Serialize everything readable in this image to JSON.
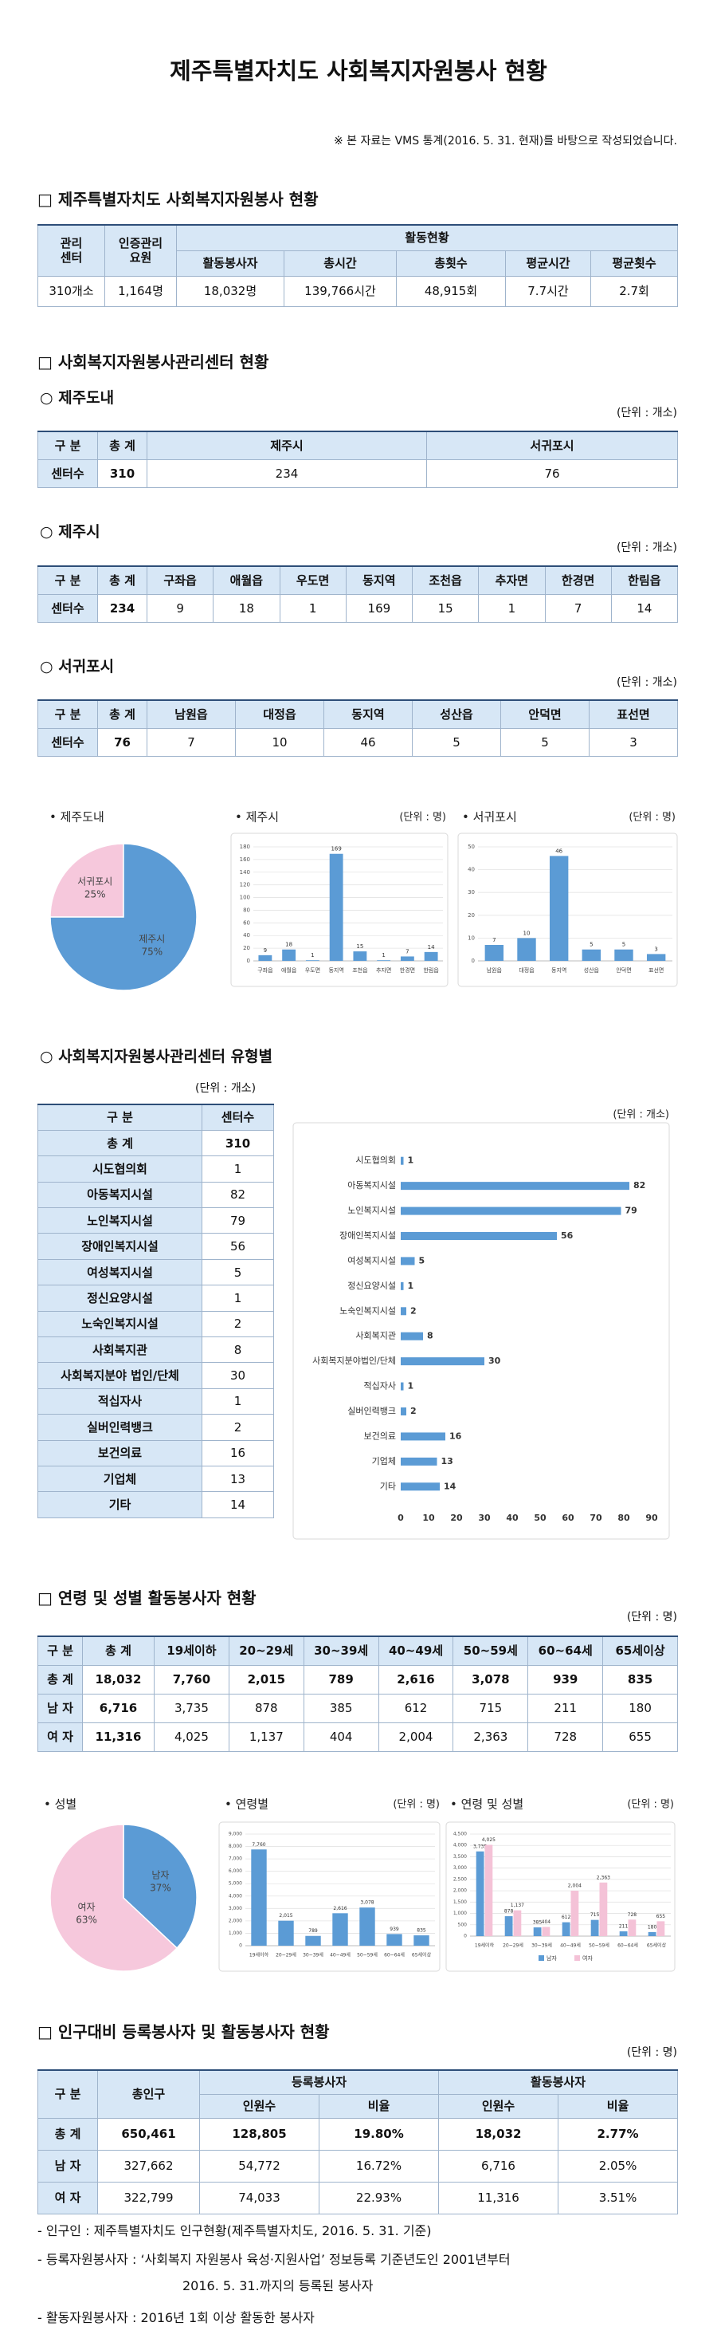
{
  "title": "제주특별자치도 사회복지자원봉사 현황",
  "note": "※ 본 자료는 VMS 통계(2016. 5. 31. 현재)를 바탕으로 작성되었습니다.",
  "section1": {
    "heading": "□ 제주특별자치도 사회복지자원봉사 현황",
    "table": {
      "head": [
        [
          "관리\n센터",
          "인증관리\n요원",
          "활동현황"
        ],
        [
          "활동봉사자",
          "총시간",
          "총횟수",
          "평균시간",
          "평균횟수"
        ]
      ],
      "rows": [
        [
          "310개소",
          "1,164명",
          "18,032명",
          "139,766시간",
          "48,915회",
          "7.7시간",
          "2.7회"
        ]
      ]
    }
  },
  "section2": {
    "heading": "□ 사회복지자원봉사관리센터 현황",
    "jeju_do": {
      "heading": "○ 제주도내",
      "unit": "(단위 : 개소)",
      "head": [
        "구 분",
        "총 계",
        "제주시",
        "서귀포시"
      ],
      "rows": [
        [
          "센터수",
          "310",
          "234",
          "76"
        ]
      ]
    },
    "jeju_si": {
      "heading": "○ 제주시",
      "unit": "(단위 : 개소)",
      "head": [
        "구 분",
        "총 계",
        "구좌읍",
        "애월읍",
        "우도면",
        "동지역",
        "조천읍",
        "추자면",
        "한경면",
        "한림읍"
      ],
      "rows": [
        [
          "센터수",
          "234",
          "9",
          "18",
          "1",
          "169",
          "15",
          "1",
          "7",
          "14"
        ]
      ]
    },
    "seogwipo": {
      "heading": "○ 서귀포시",
      "unit": "(단위 : 개소)",
      "head": [
        "구 분",
        "총 계",
        "남원읍",
        "대정읍",
        "동지역",
        "성산읍",
        "안덕면",
        "표선면"
      ],
      "rows": [
        [
          "센터수",
          "76",
          "7",
          "10",
          "46",
          "5",
          "5",
          "3"
        ]
      ]
    }
  },
  "charts1": [
    {
      "type": "pie",
      "title": "• 제주도내",
      "categories": [
        "서귀포시",
        "제주시"
      ],
      "values": [
        25,
        75
      ],
      "value_labels": [
        "25%",
        "75%"
      ],
      "colors": [
        "#f6c8dc",
        "#5b9bd5"
      ]
    },
    {
      "type": "bar",
      "title": "• 제주시",
      "unit": "(단위 : 명)",
      "categories": [
        "구좌읍",
        "애월읍",
        "우도면",
        "동지역",
        "조천읍",
        "추자면",
        "한경면",
        "한림읍"
      ],
      "values": [
        9,
        18,
        1,
        169,
        15,
        1,
        7,
        14
      ],
      "color": "#5b9bd5",
      "ylim": [
        0,
        180
      ],
      "yticks": [
        0,
        20,
        40,
        60,
        80,
        100,
        120,
        140,
        160,
        180
      ],
      "grid": true
    },
    {
      "type": "bar",
      "title": "• 서귀포시",
      "unit": "(단위 : 명)",
      "categories": [
        "남원읍",
        "대정읍",
        "동지역",
        "성산읍",
        "안덕면",
        "표선면"
      ],
      "values": [
        7,
        10,
        46,
        5,
        5,
        3
      ],
      "color": "#5b9bd5",
      "ylim": [
        0,
        50
      ],
      "yticks": [
        0,
        10,
        20,
        30,
        40,
        50
      ],
      "grid": true
    }
  ],
  "section3": {
    "heading": "○ 사회복지자원봉사관리센터 유형별",
    "unit": "(단위 : 개소)",
    "table": {
      "head": [
        "구 분",
        "센터수"
      ],
      "rows": [
        [
          "총 계",
          "310"
        ],
        [
          "시도협의회",
          "1"
        ],
        [
          "아동복지시설",
          "82"
        ],
        [
          "노인복지시설",
          "79"
        ],
        [
          "장애인복지시설",
          "56"
        ],
        [
          "여성복지시설",
          "5"
        ],
        [
          "정신요양시설",
          "1"
        ],
        [
          "노숙인복지시설",
          "2"
        ],
        [
          "사회복지관",
          "8"
        ],
        [
          "사회복지분야 법인/단체",
          "30"
        ],
        [
          "적십자사",
          "1"
        ],
        [
          "실버인력뱅크",
          "2"
        ],
        [
          "보건의료",
          "16"
        ],
        [
          "기업체",
          "13"
        ],
        [
          "기타",
          "14"
        ]
      ]
    },
    "chart": {
      "type": "hbar",
      "unit": "(단위 : 개소)",
      "categories": [
        "시도협의회",
        "아동복지시설",
        "노인복지시설",
        "장애인복지시설",
        "여성복지시설",
        "정신요양시설",
        "노숙인복지시설",
        "사회복지관",
        "사회복지분야법인/단체",
        "적십자사",
        "실버인력뱅크",
        "보건의료",
        "기업체",
        "기타"
      ],
      "values": [
        1,
        82,
        79,
        56,
        5,
        1,
        2,
        8,
        30,
        1,
        2,
        16,
        13,
        14
      ],
      "color": "#5b9bd5",
      "xlim": [
        0,
        90
      ],
      "xticks": [
        0,
        10,
        20,
        30,
        40,
        50,
        60,
        70,
        80,
        90
      ],
      "grid": false
    }
  },
  "section4": {
    "heading": "□ 연령 및 성별 활동봉사자 현황",
    "unit": "(단위 : 명)",
    "table": {
      "head": [
        "구 분",
        "총 계",
        "19세이하",
        "20~29세",
        "30~39세",
        "40~49세",
        "50~59세",
        "60~64세",
        "65세이상"
      ],
      "rows": [
        [
          "총 계",
          "18,032",
          "7,760",
          "2,015",
          "789",
          "2,616",
          "3,078",
          "939",
          "835"
        ],
        [
          "남 자",
          "6,716",
          "3,735",
          "878",
          "385",
          "612",
          "715",
          "211",
          "180"
        ],
        [
          "여 자",
          "11,316",
          "4,025",
          "1,137",
          "404",
          "2,004",
          "2,363",
          "728",
          "655"
        ]
      ]
    }
  },
  "charts2": [
    {
      "type": "pie",
      "title": "• 성별",
      "categories": [
        "남자",
        "여자"
      ],
      "values": [
        37,
        63
      ],
      "value_labels": [
        "37%",
        "63%"
      ],
      "colors": [
        "#5b9bd5",
        "#f6c8dc"
      ]
    },
    {
      "type": "bar",
      "title": "• 연령별",
      "unit": "(단위 : 명)",
      "categories": [
        "19세이하",
        "20~29세",
        "30~39세",
        "40~49세",
        "50~59세",
        "60~64세",
        "65세이상"
      ],
      "values": [
        7760,
        2015,
        789,
        2616,
        3078,
        939,
        835
      ],
      "value_labels": [
        "7,760",
        "2,015",
        "789",
        "2,616",
        "3,078",
        "939",
        "835"
      ],
      "color": "#5b9bd5",
      "ylim": [
        0,
        9000
      ],
      "yticks": [
        0,
        {
          "value": 1000,
          "label": "1,000"
        },
        {
          "value": 2000,
          "label": "2,000"
        },
        {
          "value": 3000,
          "label": "3,000"
        },
        {
          "value": 4000,
          "label": "4,000"
        },
        {
          "value": 5000,
          "label": "5,000"
        },
        {
          "value": 6000,
          "label": "6,000"
        },
        {
          "value": 7000,
          "label": "7,000"
        },
        {
          "value": 8000,
          "label": "8,000"
        },
        {
          "value": 9000,
          "label": "9,000"
        }
      ],
      "grid": true
    },
    {
      "type": "bar",
      "title": "• 연령 및 성별",
      "unit": "(단위 : 명)",
      "categories": [
        "19세이하",
        "20~29세",
        "30~39세",
        "40~49세",
        "50~59세",
        "60~64세",
        "65세이상"
      ],
      "series": [
        {
          "name": "남자",
          "color": "#5b9bd5",
          "values": [
            3735,
            878,
            385,
            612,
            715,
            211,
            180
          ],
          "value_labels": [
            "3,735",
            "878",
            "385",
            "612",
            "715",
            "211",
            "180"
          ]
        },
        {
          "name": "여자",
          "color": "#f4c2d7",
          "values": [
            4025,
            1137,
            404,
            2004,
            2363,
            728,
            655
          ],
          "value_labels": [
            "4,025",
            "1,137",
            "404",
            "2,004",
            "2,363",
            "728",
            "655"
          ]
        }
      ],
      "ylim": [
        0,
        4500
      ],
      "yticks": [
        0,
        500,
        {
          "value": 1000,
          "label": "1,000"
        },
        {
          "value": 1500,
          "label": "1,500"
        },
        {
          "value": 2000,
          "label": "2,000"
        },
        {
          "value": 2500,
          "label": "2,500"
        },
        {
          "value": 3000,
          "label": "3,000"
        },
        {
          "value": 3500,
          "label": "3,500"
        },
        {
          "value": 4000,
          "label": "4,000"
        },
        {
          "value": 4500,
          "label": "4,500"
        }
      ],
      "grid": true
    }
  ],
  "section5": {
    "heading": "□ 인구대비 등록봉사자 및 활동봉사자 현황",
    "unit": "(단위 : 명)",
    "table": {
      "head": [
        [
          "구 분",
          "총인구",
          "등록봉사자",
          "활동봉사자"
        ],
        [
          "인원수",
          "비율",
          "인원수",
          "비율"
        ]
      ],
      "rows": [
        [
          "총 계",
          "650,461",
          "128,805",
          "19.80%",
          "18,032",
          "2.77%"
        ],
        [
          "남 자",
          "327,662",
          "54,772",
          "16.72%",
          "6,716",
          "2.05%"
        ],
        [
          "여 자",
          "322,799",
          "74,033",
          "22.93%",
          "11,316",
          "3.51%"
        ]
      ]
    }
  },
  "footnotes": [
    "- 인구인 : 제주특별자치도 인구현황(제주특별자치도, 2016. 5. 31. 기준)",
    "- 등록자원봉사자 : ‘사회복지 자원봉사 육성·지원사업’ 정보등록 기준년도인 2001년부터",
    "2016. 5. 31.까지의 등록된 봉사자",
    "- 활동자원봉사자 : 2016년 1회 이상 활동한 봉사자"
  ]
}
